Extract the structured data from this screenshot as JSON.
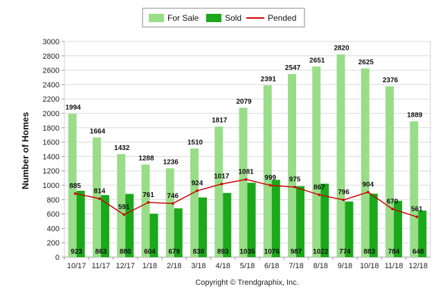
{
  "chart_data": {
    "type": "bar",
    "ylabel": "Number of Homes",
    "ylim": [
      0,
      3000
    ],
    "ytick_step": 200,
    "grid": true,
    "legend_position": "top-center",
    "categories": [
      "10/17",
      "11/17",
      "12/17",
      "1/18",
      "2/18",
      "3/18",
      "4/18",
      "5/18",
      "6/18",
      "7/18",
      "8/18",
      "9/18",
      "10/18",
      "11/18",
      "12/18"
    ],
    "series": [
      {
        "name": "For Sale",
        "kind": "bar",
        "color": "#99DD88",
        "values": [
          1994,
          1664,
          1432,
          1288,
          1236,
          1510,
          1817,
          2079,
          2391,
          2547,
          2651,
          2820,
          2625,
          2376,
          1889
        ]
      },
      {
        "name": "Sold",
        "kind": "bar",
        "color": "#1BA81B",
        "values": [
          923,
          863,
          880,
          604,
          679,
          830,
          893,
          1035,
          1076,
          987,
          1022,
          774,
          883,
          784,
          648
        ]
      },
      {
        "name": "Pended",
        "kind": "line",
        "color": "#CC0000",
        "values": [
          885,
          814,
          591,
          761,
          746,
          924,
          1017,
          1081,
          999,
          975,
          867,
          796,
          904,
          670,
          561
        ]
      }
    ],
    "copyright": "Copyright © Trendgraphix, Inc."
  }
}
